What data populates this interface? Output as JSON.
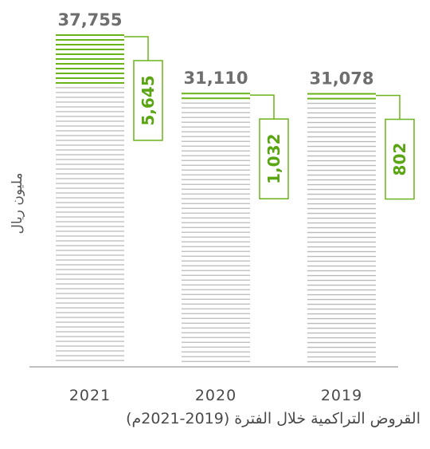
{
  "chart_data": {
    "type": "bar",
    "categories": [
      "2021",
      "2020",
      "2019"
    ],
    "values": [
      37755,
      31110,
      31078
    ],
    "value_labels": [
      "37,755",
      "31,110",
      "31,078"
    ],
    "increments": [
      5645,
      1032,
      802
    ],
    "increment_labels": [
      "5,645",
      "1,032",
      "802"
    ],
    "ylabel": "مليون ريال",
    "caption": "القروض التراكمية خلال الفترة (2019-2021م)",
    "ylim": [
      0,
      37755
    ],
    "grid": false,
    "colors": {
      "base": "#b9b9b9",
      "increment": "#6bb31a",
      "text": "#6e6e6e"
    }
  }
}
